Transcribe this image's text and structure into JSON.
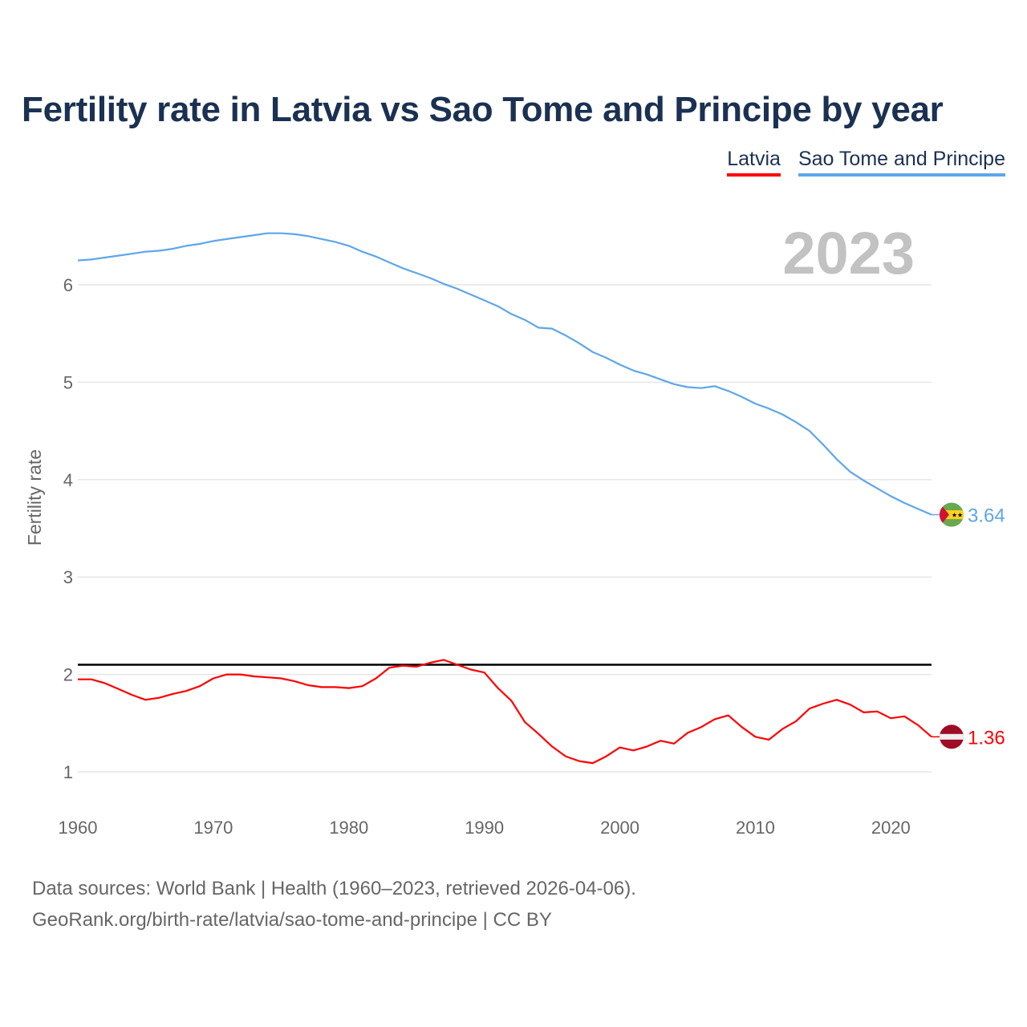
{
  "chart_data": {
    "type": "line",
    "title": "Fertility rate in Latvia vs Sao Tome and Principe by year",
    "xlabel": "",
    "ylabel": "Fertility rate",
    "xlim": [
      1960,
      2023
    ],
    "ylim": [
      0.7,
      6.9
    ],
    "x_ticks": [
      "1960",
      "1970",
      "1980",
      "1990",
      "2000",
      "2010",
      "2020"
    ],
    "y_ticks": [
      "1",
      "2",
      "3",
      "4",
      "5",
      "6"
    ],
    "grid": true,
    "legend_position": "top-right",
    "current_year_label": "2023",
    "reference_line": {
      "value": 2.1,
      "color": "#000000"
    },
    "x": [
      1960,
      1961,
      1962,
      1963,
      1964,
      1965,
      1966,
      1967,
      1968,
      1969,
      1970,
      1971,
      1972,
      1973,
      1974,
      1975,
      1976,
      1977,
      1978,
      1979,
      1980,
      1981,
      1982,
      1983,
      1984,
      1985,
      1986,
      1987,
      1988,
      1989,
      1990,
      1991,
      1992,
      1993,
      1994,
      1995,
      1996,
      1997,
      1998,
      1999,
      2000,
      2001,
      2002,
      2003,
      2004,
      2005,
      2006,
      2007,
      2008,
      2009,
      2010,
      2011,
      2012,
      2013,
      2014,
      2015,
      2016,
      2017,
      2018,
      2019,
      2020,
      2021,
      2022,
      2023
    ],
    "series": [
      {
        "name": "Latvia",
        "color": "#ff0000",
        "end_label": "1.36",
        "values": [
          1.95,
          1.95,
          1.91,
          1.85,
          1.79,
          1.74,
          1.76,
          1.8,
          1.83,
          1.88,
          1.96,
          2.0,
          2.0,
          1.98,
          1.97,
          1.96,
          1.93,
          1.89,
          1.87,
          1.87,
          1.86,
          1.88,
          1.96,
          2.07,
          2.09,
          2.08,
          2.12,
          2.15,
          2.1,
          2.05,
          2.02,
          1.86,
          1.73,
          1.51,
          1.39,
          1.26,
          1.16,
          1.11,
          1.09,
          1.16,
          1.25,
          1.22,
          1.26,
          1.32,
          1.29,
          1.4,
          1.46,
          1.54,
          1.58,
          1.46,
          1.36,
          1.33,
          1.44,
          1.52,
          1.65,
          1.7,
          1.74,
          1.69,
          1.61,
          1.62,
          1.55,
          1.57,
          1.48,
          1.36
        ]
      },
      {
        "name": "Sao Tome and Principe",
        "color": "#5ea6ea",
        "end_label": "3.64",
        "values": [
          6.25,
          6.26,
          6.28,
          6.3,
          6.32,
          6.34,
          6.35,
          6.37,
          6.4,
          6.42,
          6.45,
          6.47,
          6.49,
          6.51,
          6.53,
          6.53,
          6.52,
          6.5,
          6.47,
          6.44,
          6.4,
          6.34,
          6.29,
          6.23,
          6.17,
          6.12,
          6.07,
          6.01,
          5.96,
          5.9,
          5.84,
          5.78,
          5.7,
          5.64,
          5.56,
          5.55,
          5.48,
          5.4,
          5.31,
          5.25,
          5.18,
          5.12,
          5.08,
          5.03,
          4.98,
          4.95,
          4.94,
          4.96,
          4.91,
          4.85,
          4.78,
          4.73,
          4.67,
          4.59,
          4.5,
          4.36,
          4.21,
          4.08,
          3.99,
          3.91,
          3.83,
          3.76,
          3.7,
          3.64
        ]
      }
    ]
  },
  "source": {
    "line1": "Data sources: World Bank | Health (1960–2023, retrieved 2026-04-06).",
    "line2": "GeoRank.org/birth-rate/latvia/sao-tome-and-principe | CC BY"
  }
}
